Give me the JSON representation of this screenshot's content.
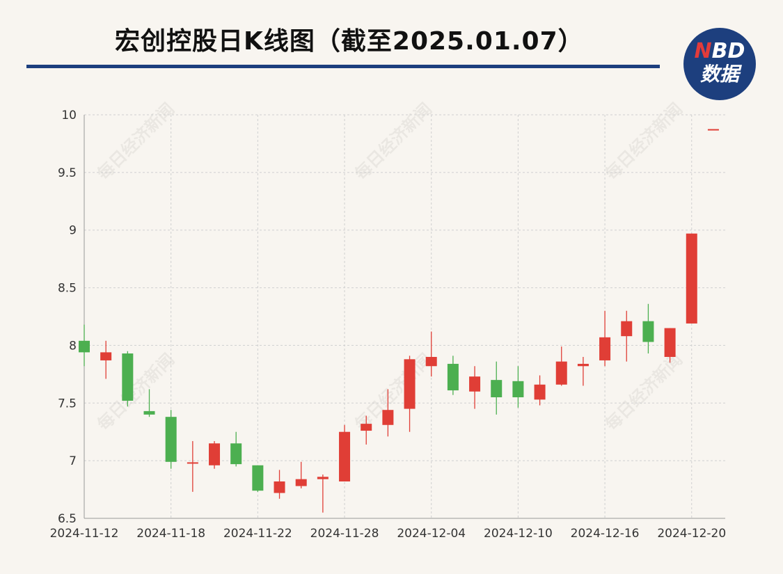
{
  "header": {
    "title": "宏创控股日K线图（截至2025.01.07）",
    "logo_top_accent": "N",
    "logo_top_rest": "BD",
    "logo_bottom": "数据"
  },
  "watermark": "每日经济新闻",
  "colors": {
    "up": "#e03e36",
    "down": "#4caf50",
    "rule": "#1d3f7e",
    "grid": "#cfcfcf",
    "background": "#f8f5f0"
  },
  "chart_data": {
    "type": "candlestick",
    "title": "宏创控股日K线图（截至2025.01.07）",
    "ylim": [
      6.5,
      10
    ],
    "y_ticks": [
      6.5,
      7,
      7.5,
      8,
      8.5,
      9,
      9.5,
      10
    ],
    "y_tick_labels": [
      "6.5",
      "7",
      "7.5",
      "8",
      "8.5",
      "9",
      "9.5",
      "10"
    ],
    "x_tick_labels": [
      "2024-11-12",
      "2024-11-18",
      "2024-11-22",
      "2024-11-28",
      "2024-12-04",
      "2024-12-10",
      "2024-12-16",
      "2024-12-20"
    ],
    "x_tick_indices": [
      0,
      4,
      8,
      12,
      16,
      20,
      24,
      28
    ],
    "grid": true,
    "candles": [
      {
        "open": 8.04,
        "close": 7.94,
        "high": 8.18,
        "low": 7.82
      },
      {
        "open": 7.87,
        "close": 7.94,
        "high": 8.04,
        "low": 7.71
      },
      {
        "open": 7.93,
        "close": 7.52,
        "high": 7.95,
        "low": 7.47
      },
      {
        "open": 7.43,
        "close": 7.4,
        "high": 7.62,
        "low": 7.38
      },
      {
        "open": 7.38,
        "close": 6.99,
        "high": 7.44,
        "low": 6.93
      },
      {
        "open": 6.98,
        "close": 6.98,
        "high": 7.17,
        "low": 6.73
      },
      {
        "open": 6.96,
        "close": 7.15,
        "high": 7.17,
        "low": 6.93
      },
      {
        "open": 7.15,
        "close": 6.97,
        "high": 7.25,
        "low": 6.95
      },
      {
        "open": 6.96,
        "close": 6.74,
        "high": 6.96,
        "low": 6.73
      },
      {
        "open": 6.72,
        "close": 6.82,
        "high": 6.92,
        "low": 6.67
      },
      {
        "open": 6.78,
        "close": 6.84,
        "high": 6.99,
        "low": 6.76
      },
      {
        "open": 6.84,
        "close": 6.86,
        "high": 6.88,
        "low": 6.55
      },
      {
        "open": 6.82,
        "close": 7.25,
        "high": 7.31,
        "low": 6.82
      },
      {
        "open": 7.26,
        "close": 7.32,
        "high": 7.39,
        "low": 7.14
      },
      {
        "open": 7.31,
        "close": 7.44,
        "high": 7.62,
        "low": 7.21
      },
      {
        "open": 7.45,
        "close": 7.88,
        "high": 7.91,
        "low": 7.25
      },
      {
        "open": 7.82,
        "close": 7.9,
        "high": 8.12,
        "low": 7.73
      },
      {
        "open": 7.84,
        "close": 7.61,
        "high": 7.91,
        "low": 7.57
      },
      {
        "open": 7.6,
        "close": 7.73,
        "high": 7.82,
        "low": 7.45
      },
      {
        "open": 7.7,
        "close": 7.55,
        "high": 7.86,
        "low": 7.4
      },
      {
        "open": 7.69,
        "close": 7.55,
        "high": 7.82,
        "low": 7.46
      },
      {
        "open": 7.53,
        "close": 7.66,
        "high": 7.74,
        "low": 7.48
      },
      {
        "open": 7.66,
        "close": 7.86,
        "high": 7.99,
        "low": 7.65
      },
      {
        "open": 7.82,
        "close": 7.84,
        "high": 7.9,
        "low": 7.65
      },
      {
        "open": 7.87,
        "close": 8.07,
        "high": 8.3,
        "low": 7.82
      },
      {
        "open": 8.08,
        "close": 8.21,
        "high": 8.3,
        "low": 7.86
      },
      {
        "open": 8.21,
        "close": 8.03,
        "high": 8.36,
        "low": 7.93
      },
      {
        "open": 7.9,
        "close": 8.15,
        "high": 8.15,
        "low": 7.85
      },
      {
        "open": 8.19,
        "close": 8.97,
        "high": 8.97,
        "low": 8.19
      },
      {
        "open": 9.87,
        "close": 9.87,
        "high": 9.87,
        "low": 9.87
      }
    ]
  }
}
